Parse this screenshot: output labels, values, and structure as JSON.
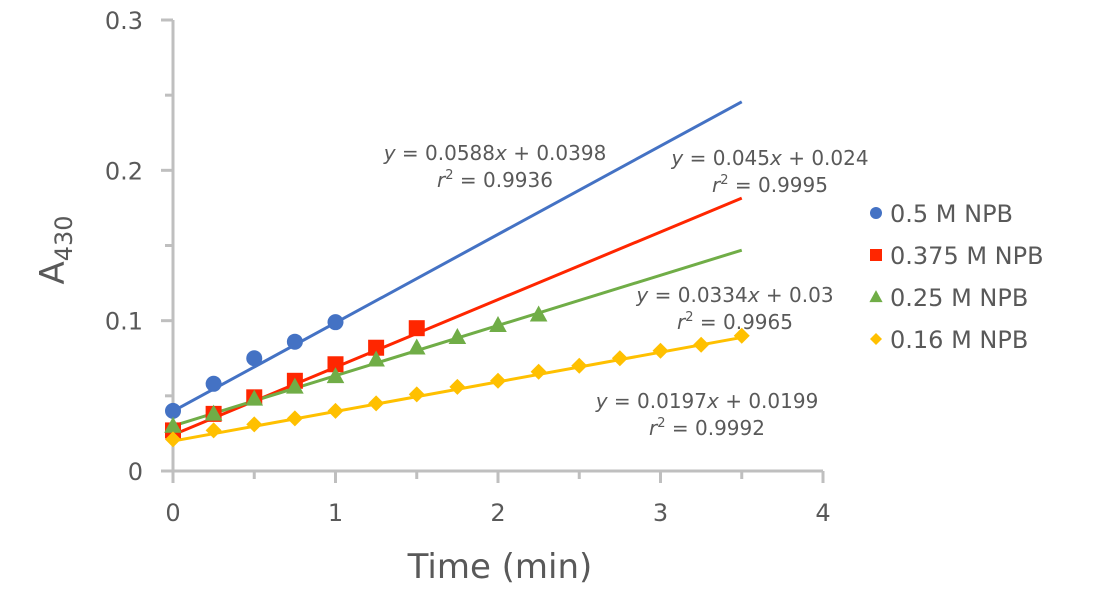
{
  "chart_data": {
    "type": "scatter",
    "title": "",
    "xlabel": "Time (min)",
    "ylabel": "A",
    "ylabel_subscript": "430",
    "xlim": [
      0,
      4
    ],
    "ylim": [
      0,
      0.3
    ],
    "x_ticks": [
      0,
      1,
      2,
      3,
      4
    ],
    "x_tick_labels": [
      "0",
      "1",
      "2",
      "3",
      "4"
    ],
    "y_ticks": [
      0,
      0.1,
      0.2,
      0.3
    ],
    "y_tick_labels": [
      "0",
      "0.1",
      "0.2",
      "0.3"
    ],
    "grid": false,
    "legend_position": "right",
    "series": [
      {
        "name": "0.5 M NPB",
        "marker": "circle",
        "color": "#4472C4",
        "x": [
          0,
          0.25,
          0.5,
          0.75,
          1.0
        ],
        "y": [
          0.04,
          0.058,
          0.075,
          0.086,
          0.099
        ],
        "trendline": {
          "slope": 0.0588,
          "intercept": 0.0398,
          "x_range": [
            0,
            3.5
          ]
        },
        "equation": {
          "line1_prefix": "y",
          "line1_body": " = 0.0588",
          "line1_var": "x",
          "line1_suffix": " + 0.0398",
          "line2_prefix": "r",
          "line2_sup": "2",
          "line2_suffix": " = 0.9936"
        }
      },
      {
        "name": "0.375 M NPB",
        "marker": "square",
        "color": "#FF2600",
        "x": [
          0,
          0.25,
          0.5,
          0.75,
          1.0,
          1.25,
          1.5
        ],
        "y": [
          0.027,
          0.038,
          0.049,
          0.06,
          0.071,
          0.082,
          0.095
        ],
        "trendline": {
          "slope": 0.045,
          "intercept": 0.024,
          "x_range": [
            0,
            3.5
          ]
        },
        "equation": {
          "line1_prefix": "y",
          "line1_body": " = 0.045",
          "line1_var": "x",
          "line1_suffix": " + 0.024",
          "line2_prefix": "r",
          "line2_sup": "2",
          "line2_suffix": " = 0.9995"
        }
      },
      {
        "name": "0.25 M NPB",
        "marker": "triangle",
        "color": "#70AD47",
        "x": [
          0,
          0.25,
          0.5,
          0.75,
          1.0,
          1.25,
          1.5,
          1.75,
          2.0,
          2.25
        ],
        "y": [
          0.03,
          0.038,
          0.048,
          0.056,
          0.063,
          0.074,
          0.082,
          0.089,
          0.097,
          0.104
        ],
        "trendline": {
          "slope": 0.0334,
          "intercept": 0.03,
          "x_range": [
            0,
            3.5
          ]
        },
        "equation": {
          "line1_prefix": "y",
          "line1_body": " = 0.0334",
          "line1_var": "x",
          "line1_suffix": " + 0.03",
          "line2_prefix": "r",
          "line2_sup": "2",
          "line2_suffix": " = 0.9965"
        }
      },
      {
        "name": "0.16 M NPB",
        "marker": "diamond",
        "color": "#FFC000",
        "x": [
          0,
          0.25,
          0.5,
          0.75,
          1.0,
          1.25,
          1.5,
          1.75,
          2.0,
          2.25,
          2.5,
          2.75,
          3.0,
          3.25,
          3.5
        ],
        "y": [
          0.021,
          0.027,
          0.031,
          0.035,
          0.04,
          0.045,
          0.051,
          0.056,
          0.06,
          0.066,
          0.07,
          0.075,
          0.08,
          0.084,
          0.09
        ],
        "trendline": {
          "slope": 0.0197,
          "intercept": 0.0199,
          "x_range": [
            0,
            3.5
          ]
        },
        "equation": {
          "line1_prefix": "y",
          "line1_body": " = 0.0197",
          "line1_var": "x",
          "line1_suffix": " + 0.0199",
          "line2_prefix": "r",
          "line2_sup": "2",
          "line2_suffix": " = 0.9992"
        }
      }
    ]
  }
}
